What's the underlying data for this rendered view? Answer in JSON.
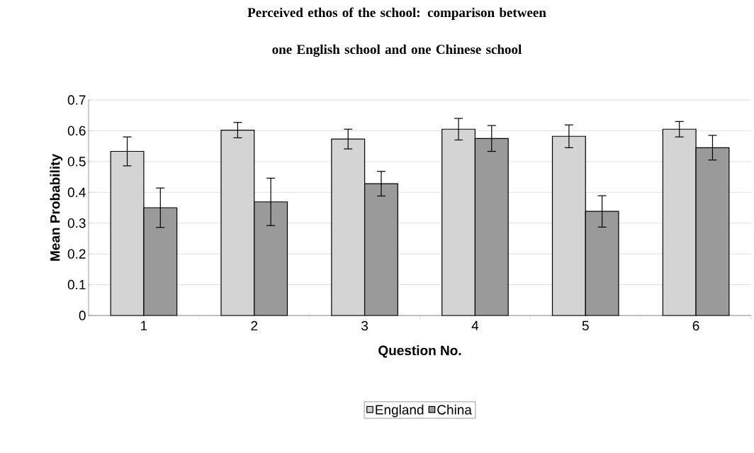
{
  "chart_data": {
    "type": "bar",
    "title": "Perceived ethos of the school: comparison between one English school and one Chinese school",
    "xlabel": "Question No.",
    "ylabel": "Mean Probability",
    "categories": [
      "1",
      "2",
      "3",
      "4",
      "5",
      "6"
    ],
    "series": [
      {
        "name": "England",
        "color": "#d4d4d4",
        "values": [
          0.533,
          0.602,
          0.573,
          0.605,
          0.582,
          0.605
        ],
        "errors": [
          0.047,
          0.025,
          0.032,
          0.035,
          0.037,
          0.025
        ]
      },
      {
        "name": "China",
        "color": "#9a9a9a",
        "values": [
          0.35,
          0.369,
          0.428,
          0.575,
          0.338,
          0.545
        ],
        "errors": [
          0.064,
          0.077,
          0.04,
          0.042,
          0.051,
          0.04
        ]
      }
    ],
    "ylim": [
      0,
      0.7
    ],
    "yticks": [
      0,
      0.1,
      0.2,
      0.3,
      0.4,
      0.5,
      0.6,
      0.7
    ],
    "grid": "y",
    "legend": "bottom"
  }
}
